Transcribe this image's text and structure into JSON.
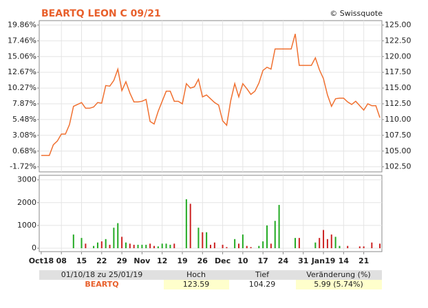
{
  "header": {
    "title": "BEARTQ LEON C 09/21",
    "copyright": "© Swissquote"
  },
  "chart_data": [
    {
      "type": "line",
      "color": "#f07030",
      "grid": true,
      "values": [
        104.3,
        104.3,
        104.3,
        106.0,
        106.6,
        107.7,
        107.7,
        109.2,
        112.1,
        112.4,
        112.7,
        111.8,
        111.8,
        112.0,
        112.7,
        112.6,
        115.4,
        115.3,
        116.2,
        118.0,
        114.6,
        116.0,
        114.2,
        112.8,
        112.8,
        112.9,
        113.2,
        109.7,
        109.3,
        111.3,
        112.9,
        114.5,
        114.5,
        112.9,
        112.9,
        112.5,
        115.7,
        115.0,
        115.2,
        116.4,
        113.6,
        113.9,
        113.3,
        112.7,
        112.3,
        109.8,
        109.1,
        113.0,
        115.7,
        113.6,
        115.7,
        114.9,
        114.0,
        114.5,
        115.8,
        117.8,
        118.3,
        118.0,
        121.2,
        121.2,
        121.2,
        121.2,
        121.2,
        123.59,
        118.6,
        118.6,
        118.6,
        118.6,
        119.8,
        117.9,
        116.5,
        113.9,
        112.1,
        113.3,
        113.4,
        113.4,
        112.8,
        112.4,
        112.9,
        112.2,
        111.5,
        112.5,
        112.2,
        112.2,
        110.3
      ],
      "ylim": [
        101.7,
        125.7
      ],
      "yticks": [
        {
          "value": 102.5,
          "label": "102.50"
        },
        {
          "value": 105,
          "label": "105.00"
        },
        {
          "value": 107.5,
          "label": "107.50"
        },
        {
          "value": 110,
          "label": "110.00"
        },
        {
          "value": 112.5,
          "label": "112.50"
        },
        {
          "value": 115,
          "label": "115.00"
        },
        {
          "value": 117.5,
          "label": "117.50"
        },
        {
          "value": 120,
          "label": "120.00"
        },
        {
          "value": 122.5,
          "label": "122.50"
        },
        {
          "value": 125,
          "label": "125.00"
        }
      ],
      "y2lim": [
        -2.483,
        20.529
      ],
      "y2ticks": [
        {
          "value": -1.72,
          "label": "-1.72%"
        },
        {
          "value": 0.68,
          "label": "0.68%"
        },
        {
          "value": 3.08,
          "label": "3.08%"
        },
        {
          "value": 5.48,
          "label": "5.48%"
        },
        {
          "value": 7.87,
          "label": "7.87%"
        },
        {
          "value": 10.27,
          "label": "10.27%"
        },
        {
          "value": 12.67,
          "label": "12.67%"
        },
        {
          "value": 15.06,
          "label": "15.06%"
        },
        {
          "value": 17.46,
          "label": "17.46%"
        },
        {
          "value": 19.86,
          "label": "19.86%"
        }
      ]
    },
    {
      "type": "bar",
      "up_color": "#22aa22",
      "down_color": "#cc2222",
      "grid": true,
      "categories": [
        "Oct18",
        null,
        null,
        null,
        null,
        "08",
        null,
        null,
        null,
        null,
        "15",
        null,
        null,
        null,
        null,
        "22",
        null,
        null,
        null,
        null,
        "29",
        null,
        null,
        null,
        null,
        "Nov",
        null,
        null,
        null,
        null,
        "12",
        null,
        null,
        null,
        null,
        "19",
        null,
        null,
        null,
        null,
        "26",
        null,
        null,
        null,
        null,
        "Dec",
        null,
        null,
        null,
        null,
        "10",
        null,
        null,
        null,
        null,
        "17",
        null,
        null,
        null,
        null,
        "24",
        null,
        null,
        null,
        null,
        "31",
        null,
        null,
        null,
        null,
        "Jan19",
        null,
        null,
        null,
        null,
        "14",
        null,
        null,
        null,
        null,
        "21",
        null,
        null,
        null,
        null
      ],
      "values": [
        0,
        0,
        0,
        0,
        0,
        0,
        0,
        0,
        600,
        0,
        450,
        200,
        0,
        100,
        250,
        300,
        400,
        150,
        900,
        1100,
        500,
        250,
        200,
        150,
        150,
        150,
        150,
        200,
        100,
        80,
        200,
        200,
        150,
        200,
        0,
        0,
        2150,
        1950,
        0,
        900,
        700,
        700,
        150,
        250,
        0,
        150,
        50,
        0,
        400,
        200,
        600,
        100,
        50,
        0,
        100,
        300,
        1000,
        200,
        1200,
        1900,
        0,
        0,
        0,
        450,
        450,
        0,
        0,
        0,
        250,
        450,
        800,
        400,
        600,
        500,
        100,
        0,
        100,
        0,
        0,
        80,
        80,
        0,
        250,
        0,
        200
      ],
      "ylim": [
        -150,
        3200
      ],
      "yticks": [
        0,
        1000,
        2000,
        3000
      ]
    }
  ],
  "table": {
    "header": [
      "01/10/18 zu 25/01/19",
      "Hoch",
      "Tief",
      "Veränderung (%)"
    ],
    "row": [
      "BEARTQ",
      "123.59",
      "104.29",
      "5.99 (5.74%)"
    ]
  }
}
